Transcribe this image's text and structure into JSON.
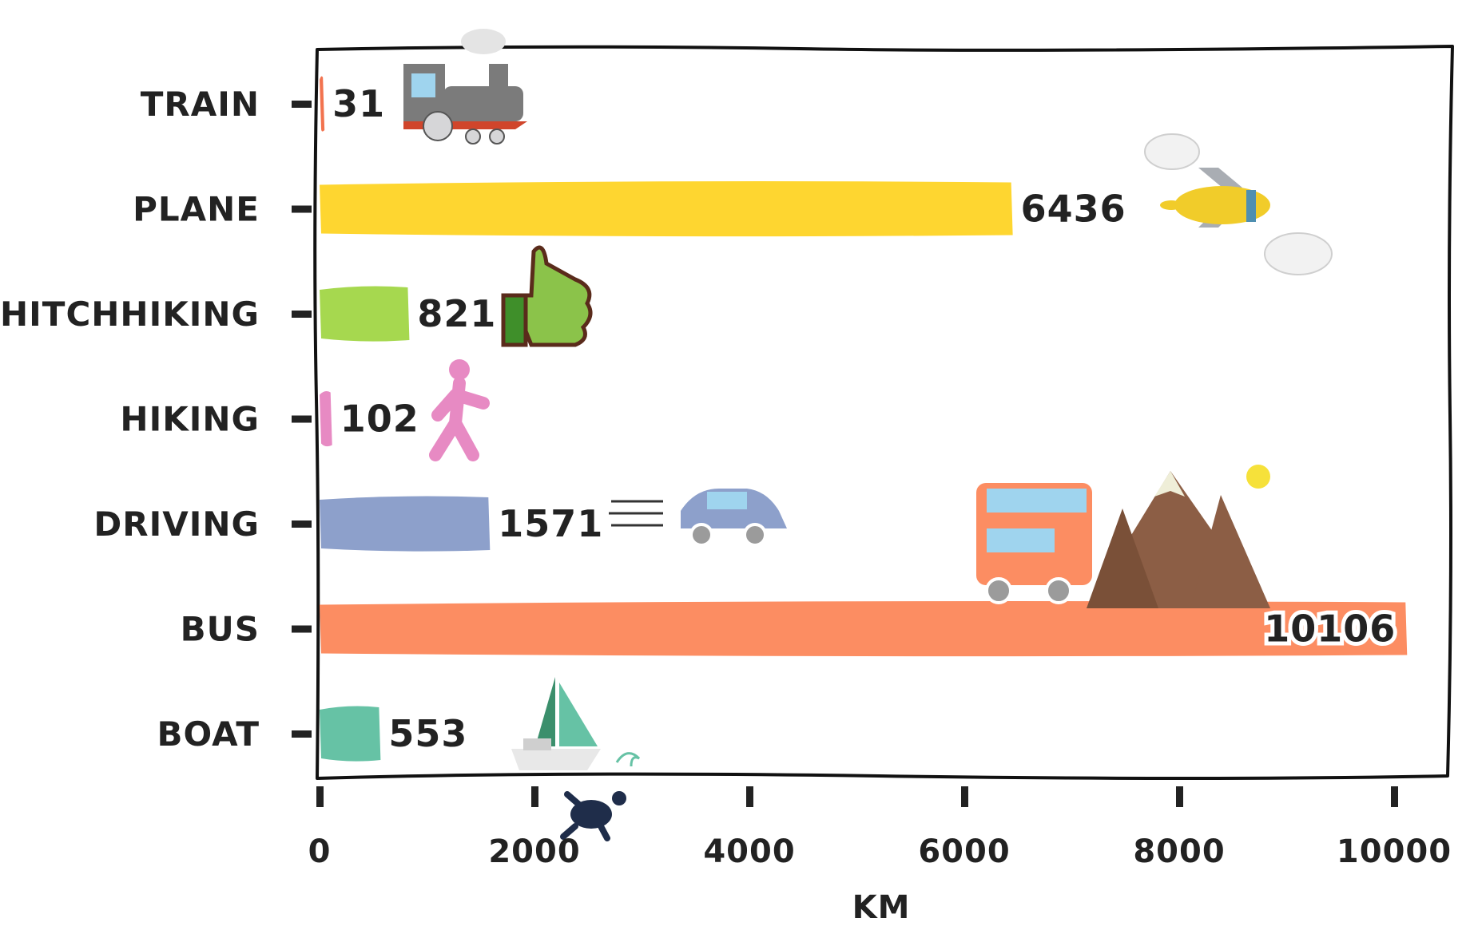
{
  "chart_data": {
    "type": "bar",
    "orientation": "horizontal",
    "title": "",
    "xlabel": "KM",
    "ylabel": "",
    "xlim": [
      0,
      10600
    ],
    "xticks": [
      0,
      2000,
      4000,
      6000,
      8000,
      10000
    ],
    "xtick_labels": [
      "0",
      "2000",
      "4000",
      "6000",
      "8000",
      "10000"
    ],
    "grid": false,
    "style": "hand-drawn",
    "categories": [
      "TRAIN",
      "PLANE",
      "HITCHHIKING",
      "HIKING",
      "DRIVING",
      "BUS",
      "BOAT"
    ],
    "values": [
      31,
      6436,
      821,
      102,
      1571,
      10106,
      553
    ],
    "value_labels": [
      "31",
      "6436",
      "821",
      "102",
      "1571",
      "10106",
      "553"
    ],
    "colors": [
      "#f2734f",
      "#fed630",
      "#a6d84f",
      "#e78ac3",
      "#8da0cb",
      "#fc8d62",
      "#66c2a5"
    ],
    "icons": [
      "train-icon",
      "plane-icon",
      "thumbs-up-icon",
      "walking-person-icon",
      "car-icon",
      "bus-and-mountains-icon",
      "sailboat-icon"
    ]
  }
}
